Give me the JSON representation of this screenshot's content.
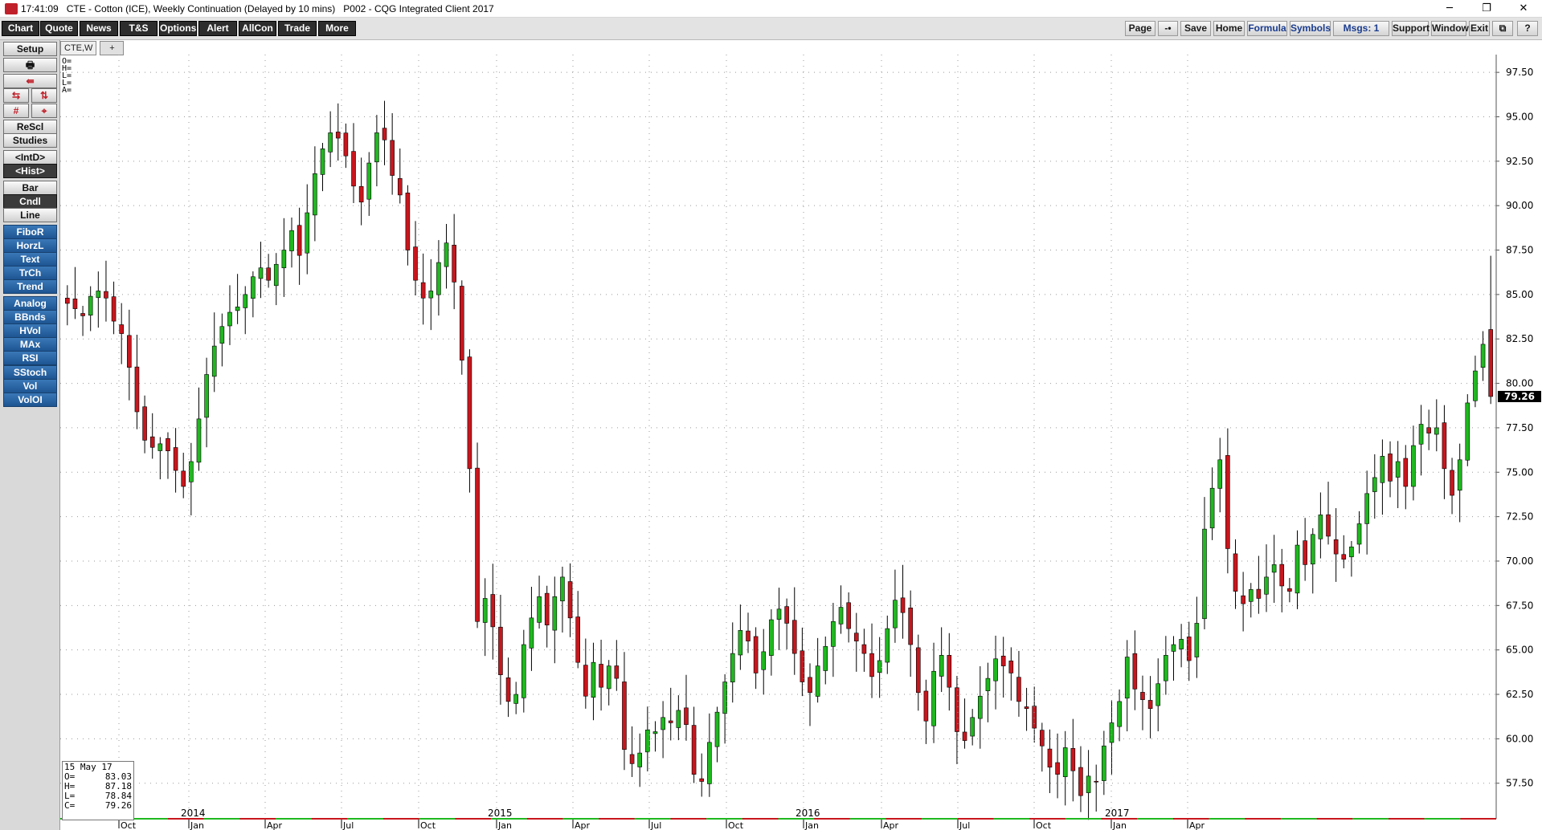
{
  "titlebar": {
    "time": "17:41:09",
    "title": "CTE - Cotton (ICE), Weekly Continuation (Delayed by 10 mins)   P002 - CQG Integrated Client 2017",
    "minimize": "─",
    "restore": "❐",
    "close": "✕"
  },
  "toolbar": {
    "left": [
      "Chart",
      "Quote",
      "News",
      "T&S",
      "Options",
      "Alert",
      "AllCon",
      "Trade",
      "More"
    ],
    "right": [
      "Page",
      "-•",
      "Save",
      "Home",
      "Formula",
      "Symbols",
      "Msgs: 1",
      "Support",
      "Window",
      "Exit",
      "⧉",
      "?"
    ]
  },
  "leftpanel": {
    "setup": "Setup",
    "print_icon": "printer-icon",
    "btn_rescl": "ReScl",
    "btn_studies": "Studies",
    "btn_intd": "<IntD>",
    "btn_hist": "<Hist>",
    "btn_bar": "Bar",
    "btn_cndl": "Cndl",
    "btn_line": "Line",
    "studies": [
      "FiboR",
      "HorzL",
      "Text",
      "TrCh",
      "Trend",
      "Analog",
      "BBnds",
      "HVol",
      "MAx",
      "RSI",
      "SStoch",
      "Vol",
      "VolOI"
    ]
  },
  "chart_tab": {
    "label": "CTE,W",
    "plus": "+"
  },
  "ohlc_labels": [
    "O=",
    "H=",
    "L=",
    "L=",
    "A="
  ],
  "ohlc_box": {
    "date": "15 May 17",
    "rows": [
      {
        "k": "O=",
        "v": "83.03"
      },
      {
        "k": "H=",
        "v": "87.18"
      },
      {
        "k": "L=",
        "v": "78.84"
      },
      {
        "k": "C=",
        "v": "79.26"
      }
    ]
  },
  "colors": {
    "up": "#1fb81f",
    "down": "#c8161d",
    "last_price_bg": "#000000",
    "grid": "#9a9a9a"
  },
  "chart_data": {
    "type": "candlestick",
    "symbol": "CTE",
    "interval": "Weekly",
    "y_ticks": [
      "97.50",
      "95.00",
      "92.50",
      "90.00",
      "87.50",
      "85.00",
      "82.50",
      "80.00",
      "77.50",
      "75.00",
      "72.50",
      "70.00",
      "67.50",
      "65.00",
      "62.50",
      "60.00",
      "57.50"
    ],
    "ylim": [
      55.5,
      98.5
    ],
    "last_price": "79.26",
    "year_labels": [
      "2014",
      "2015",
      "2016",
      "2017"
    ],
    "month_labels": [
      "Oct",
      "Jan",
      "Apr",
      "Jul",
      "Oct",
      "Jan",
      "Apr",
      "Jul",
      "Oct",
      "Jan",
      "Apr",
      "Jul",
      "Oct",
      "Jan",
      "Apr"
    ],
    "close_series": [
      84.5,
      84.2,
      83.8,
      84.9,
      85.2,
      84.8,
      83.5,
      82.8,
      80.9,
      78.4,
      76.8,
      76.4,
      76.6,
      76.2,
      75.1,
      74.2,
      75.6,
      78.0,
      80.5,
      82.1,
      83.2,
      84.0,
      84.3,
      85.0,
      86.0,
      86.5,
      85.8,
      86.7,
      87.5,
      88.6,
      87.2,
      89.6,
      91.8,
      93.2,
      94.1,
      93.8,
      92.8,
      91.1,
      90.2,
      92.4,
      94.1,
      93.7,
      91.7,
      90.6,
      87.5,
      85.8,
      84.8,
      85.2,
      86.8,
      87.9,
      85.7,
      81.3,
      75.2,
      66.6,
      67.9,
      66.3,
      63.6,
      62.1,
      62.5,
      65.3,
      66.8,
      68.0,
      66.4,
      68.0,
      69.1,
      66.8,
      64.3,
      62.4,
      64.3,
      62.9,
      64.1,
      63.4,
      59.4,
      58.6,
      59.2,
      60.5,
      60.4,
      61.2,
      60.9,
      61.6,
      60.8,
      58.0,
      57.6,
      59.8,
      61.5,
      63.2,
      64.8,
      66.1,
      65.5,
      63.7,
      64.9,
      66.7,
      67.3,
      66.5,
      64.8,
      63.2,
      62.6,
      64.1,
      65.2,
      66.6,
      67.4,
      66.2,
      65.5,
      64.8,
      63.5,
      64.4,
      66.2,
      67.8,
      67.1,
      65.3,
      62.6,
      61.0,
      63.8,
      64.7,
      62.9,
      60.4,
      59.9,
      61.2,
      62.4,
      63.4,
      64.5,
      64.1,
      63.7,
      62.1,
      61.7,
      60.6,
      59.6,
      58.4,
      58.0,
      59.5,
      58.2,
      56.8,
      57.9,
      57.6,
      59.6,
      60.9,
      62.1,
      64.6,
      62.8,
      62.2,
      61.7,
      63.1,
      64.7,
      65.3,
      65.6,
      64.4,
      66.5,
      71.8,
      74.1,
      75.7,
      70.7,
      68.3,
      67.6,
      68.4,
      67.9,
      69.1,
      69.8,
      68.6,
      68.3,
      70.9,
      69.8,
      71.5,
      72.6,
      71.4,
      70.4,
      70.1,
      70.8,
      72.1,
      73.8,
      74.7,
      75.9,
      74.5,
      75.6,
      74.2,
      76.5,
      77.7,
      77.2,
      77.5,
      75.2,
      73.7,
      75.7,
      78.9,
      80.7,
      82.2,
      79.26
    ],
    "ohlc_latest": {
      "open": 83.03,
      "high": 87.18,
      "low": 78.84,
      "close": 79.26
    }
  }
}
